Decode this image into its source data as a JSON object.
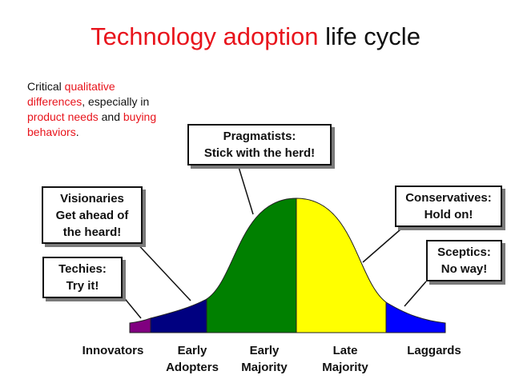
{
  "title": {
    "highlight": "Technology adoption",
    "rest": " life cycle"
  },
  "note": {
    "p1": "Critical ",
    "p2": "qualitative differences",
    "p3": ", especially in ",
    "p4": "product needs",
    "p5": " and ",
    "p6": "buying behaviors",
    "p7": "."
  },
  "callouts": {
    "pragmatists": {
      "line1": "Pragmatists:",
      "line2": "Stick with the herd!"
    },
    "visionaries": {
      "line1": "Visionaries",
      "line2": "Get ahead of",
      "line3": "the heard!"
    },
    "techies": {
      "line1": "Techies:",
      "line2": "Try it!"
    },
    "conservatives": {
      "line1": "Conservatives:",
      "line2": "Hold on!"
    },
    "sceptics": {
      "line1": "Sceptics:",
      "line2": "No way!"
    }
  },
  "segments": {
    "innovators": {
      "label": "Innovators"
    },
    "early_adopters": {
      "line1": "Early",
      "line2": "Adopters"
    },
    "early_majority": {
      "line1": "Early",
      "line2": "Majority"
    },
    "late_majority": {
      "line1": "Late",
      "line2": "Majority"
    },
    "laggards": {
      "label": "Laggards"
    }
  },
  "colors": {
    "accent": "#e8141c",
    "innovators": "#800080",
    "early_adopters": "#000080",
    "early_majority": "#008000",
    "late_majority": "#ffff00",
    "laggards": "#0000ff"
  }
}
